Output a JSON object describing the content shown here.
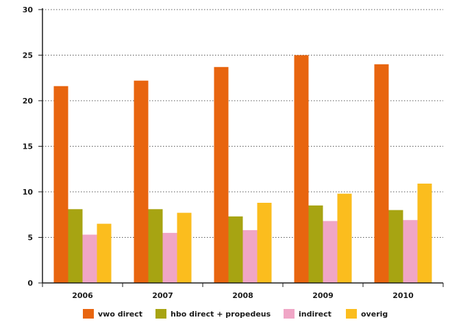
{
  "chart_data": {
    "type": "bar",
    "title": "",
    "xlabel": "",
    "ylabel": "",
    "categories": [
      "2006",
      "2007",
      "2008",
      "2009",
      "2010"
    ],
    "series": [
      {
        "name": "vwo direct",
        "color": "#e8650f",
        "values": [
          21.6,
          22.2,
          23.7,
          25.0,
          24.0
        ]
      },
      {
        "name": "hbo direct + propedeus",
        "color": "#a7a412",
        "values": [
          8.1,
          8.1,
          7.3,
          8.5,
          8.0
        ]
      },
      {
        "name": "indirect",
        "color": "#f0a6c6",
        "values": [
          5.3,
          5.5,
          5.8,
          6.8,
          6.9
        ]
      },
      {
        "name": "overig",
        "color": "#fbbd1e",
        "values": [
          6.5,
          7.7,
          8.8,
          9.8,
          10.9
        ]
      }
    ],
    "ylim": [
      0,
      30
    ],
    "yticks": [
      "0",
      "5",
      "10",
      "15",
      "20",
      "25",
      "30"
    ],
    "grid": true,
    "legend_position": "bottom"
  }
}
